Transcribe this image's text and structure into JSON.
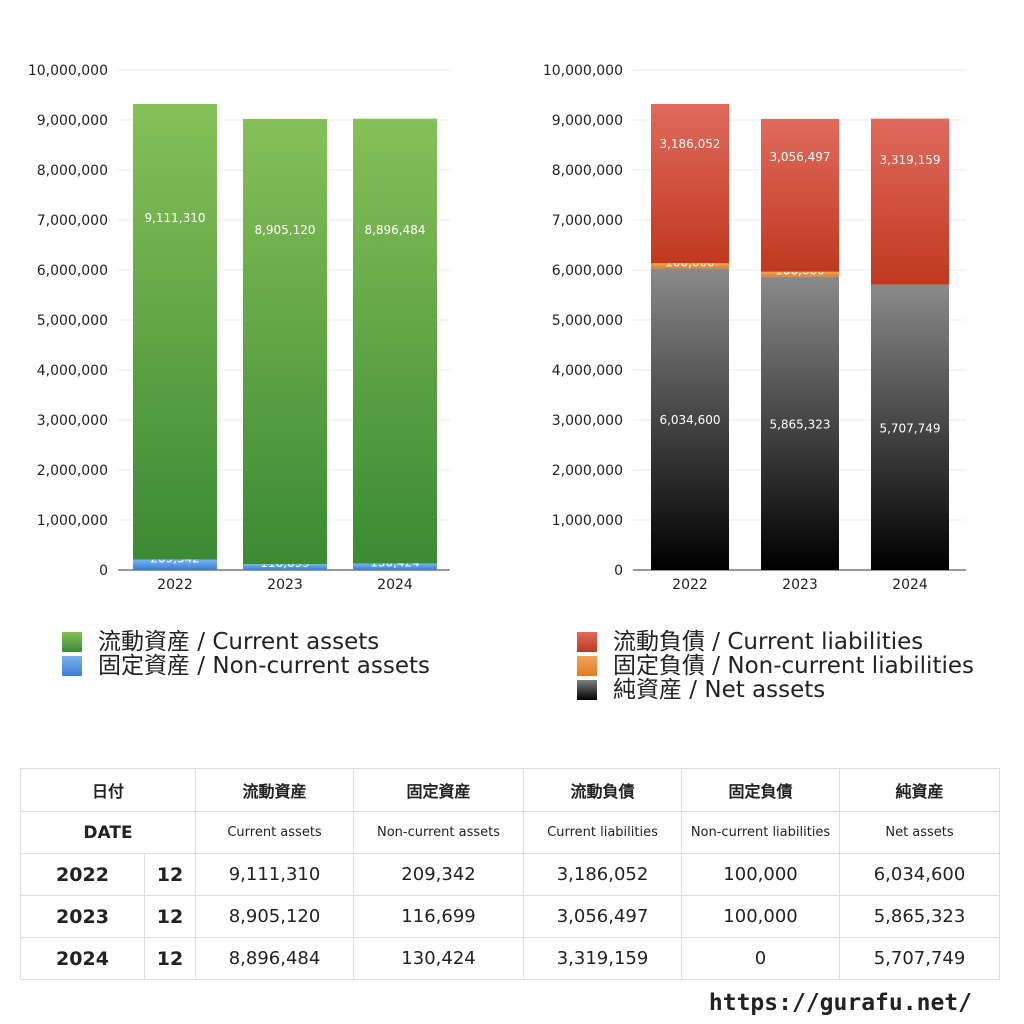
{
  "chart_data": [
    {
      "type": "bar",
      "stacked": true,
      "categories": [
        "2022",
        "2023",
        "2024"
      ],
      "ylim": [
        0,
        10000000
      ],
      "yticks": [
        "10,000,000",
        "9,000,000",
        "8,000,000",
        "7,000,000",
        "6,000,000",
        "5,000,000",
        "4,000,000",
        "3,000,000",
        "2,000,000",
        "1,000,000",
        "0"
      ],
      "series": [
        {
          "name": "固定資産 / Non-current assets",
          "values": [
            209342,
            116699,
            130424
          ],
          "labels": [
            "209,342",
            "116,699",
            "130,424"
          ],
          "color": "#4a8ae0"
        },
        {
          "name": "流動資産 / Current assets",
          "values": [
            9111310,
            8905120,
            8896484
          ],
          "labels": [
            "9,111,310",
            "8,905,120",
            "8,896,484"
          ],
          "color": "#5aa443"
        }
      ]
    },
    {
      "type": "bar",
      "stacked": true,
      "categories": [
        "2022",
        "2023",
        "2024"
      ],
      "ylim": [
        0,
        10000000
      ],
      "yticks": [
        "10,000,000",
        "9,000,000",
        "8,000,000",
        "7,000,000",
        "6,000,000",
        "5,000,000",
        "4,000,000",
        "3,000,000",
        "2,000,000",
        "1,000,000",
        "0"
      ],
      "series": [
        {
          "name": "純資産 / Net assets",
          "values": [
            6034600,
            5865323,
            5707749
          ],
          "labels": [
            "6,034,600",
            "5,865,323",
            "5,707,749"
          ],
          "color": "#333333"
        },
        {
          "name": "固定負債 / Non-current liabilities",
          "values": [
            100000,
            100000,
            0
          ],
          "labels": [
            "100,000",
            "100,000",
            ""
          ],
          "color": "#e8892f"
        },
        {
          "name": "流動負債 / Current liabilities",
          "values": [
            3186052,
            3056497,
            3319159
          ],
          "labels": [
            "3,186,052",
            "3,056,497",
            "3,319,159"
          ],
          "color": "#d04a36"
        }
      ]
    }
  ],
  "legend_left": [
    "流動資産 / Current assets",
    "固定資産 / Non-current assets"
  ],
  "legend_right": [
    "流動負債 / Current liabilities",
    "固定負債 / Non-current liabilities",
    "純資産 / Net assets"
  ],
  "table": {
    "header_jp": [
      "日付",
      "流動資産",
      "固定資産",
      "流動負債",
      "固定負債",
      "純資産"
    ],
    "header_en": [
      "DATE",
      "Current assets",
      "Non-current assets",
      "Current liabilities",
      "Non-current liabilities",
      "Net assets"
    ],
    "rows": [
      {
        "year": "2022",
        "month": "12",
        "vals": [
          "9,111,310",
          "209,342",
          "3,186,052",
          "100,000",
          "6,034,600"
        ]
      },
      {
        "year": "2023",
        "month": "12",
        "vals": [
          "8,905,120",
          "116,699",
          "3,056,497",
          "100,000",
          "5,865,323"
        ]
      },
      {
        "year": "2024",
        "month": "12",
        "vals": [
          "8,896,484",
          "130,424",
          "3,319,159",
          "0",
          "5,707,749"
        ]
      }
    ]
  },
  "footer": "https://gurafu.net/"
}
